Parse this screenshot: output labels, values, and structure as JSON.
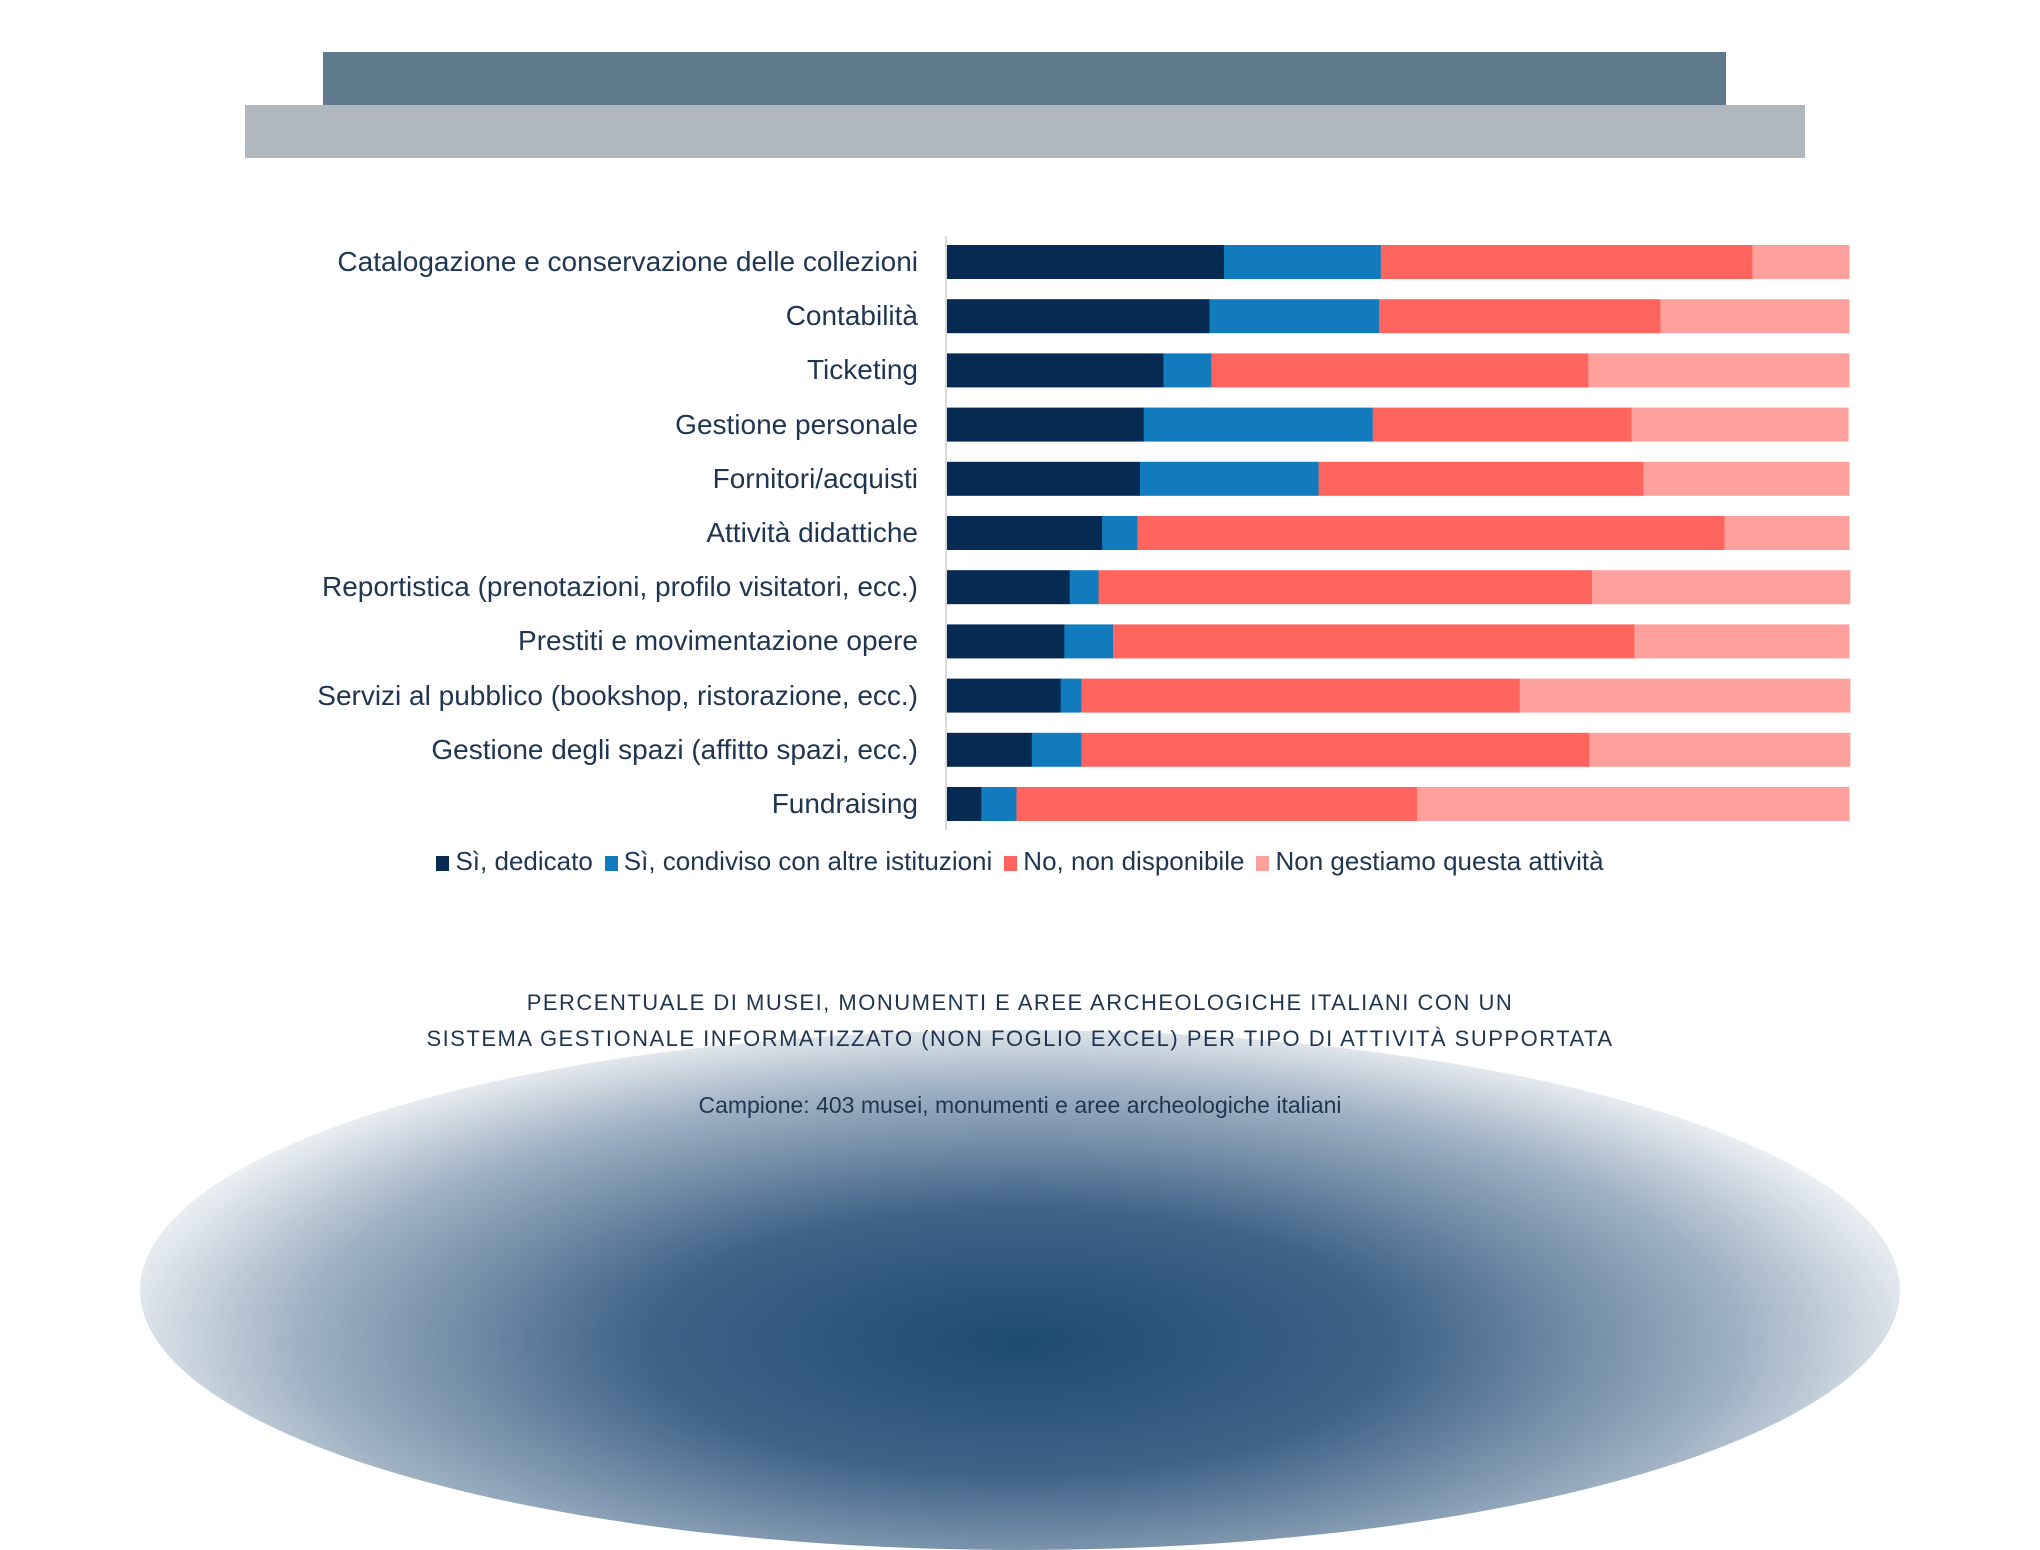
{
  "header": {
    "band_dark_color": "#5e7a8c",
    "band_light_color": "#b0b7be"
  },
  "chart_data": {
    "type": "bar",
    "orientation": "horizontal",
    "stacked": true,
    "normalized_percent": true,
    "xlim": [
      0,
      100
    ],
    "grid": false,
    "legend_position": "bottom",
    "categories": [
      "Catalogazione e conservazione delle collezioni",
      "Contabilità",
      "Ticketing",
      "Gestione personale",
      "Fornitori/acquisti",
      "Attività didattiche",
      "Reportistica (prenotazioni, profilo visitatori, ecc.)",
      "Prestiti e movimentazione opere",
      "Servizi al pubblico (bookshop, ristorazione, ecc.)",
      "Gestione degli spazi (affitto spazi, ecc.)",
      "Fundraising"
    ],
    "series": [
      {
        "name": "Sì, dedicato",
        "color": "#062a52",
        "values": [
          30.7,
          29.1,
          24.0,
          21.8,
          21.4,
          17.2,
          13.6,
          13.0,
          12.6,
          9.4,
          3.8
        ]
      },
      {
        "name": "Sì, condiviso con altre istituzioni",
        "color": "#127bbd",
        "values": [
          17.4,
          18.8,
          5.3,
          25.4,
          19.8,
          3.9,
          3.2,
          5.4,
          2.3,
          5.5,
          3.9
        ]
      },
      {
        "name": "No, non disponibile",
        "color": "#ff645e",
        "values": [
          41.2,
          31.2,
          41.8,
          28.7,
          36.0,
          65.1,
          54.7,
          57.8,
          48.6,
          56.3,
          44.4
        ]
      },
      {
        "name": "Non gestiamo questa attività",
        "color": "#fea19c",
        "values": [
          10.7,
          20.9,
          28.9,
          24.0,
          22.8,
          13.8,
          28.6,
          23.8,
          36.6,
          28.9,
          47.9
        ]
      }
    ]
  },
  "caption": {
    "line1": "PERCENTUALE  DI MUSEI, MONUMENTI E AREE ARCHEOLOGICHE ITALIANI CON UN",
    "line2": "SISTEMA GESTIONALE INFORMATIZZATO  (NON FOGLIO EXCEL) PER TIPO DI ATTIVITÀ SUPPORTATA",
    "sample": "Campione: 403 musei, monumenti e aree archeologiche italiani"
  }
}
